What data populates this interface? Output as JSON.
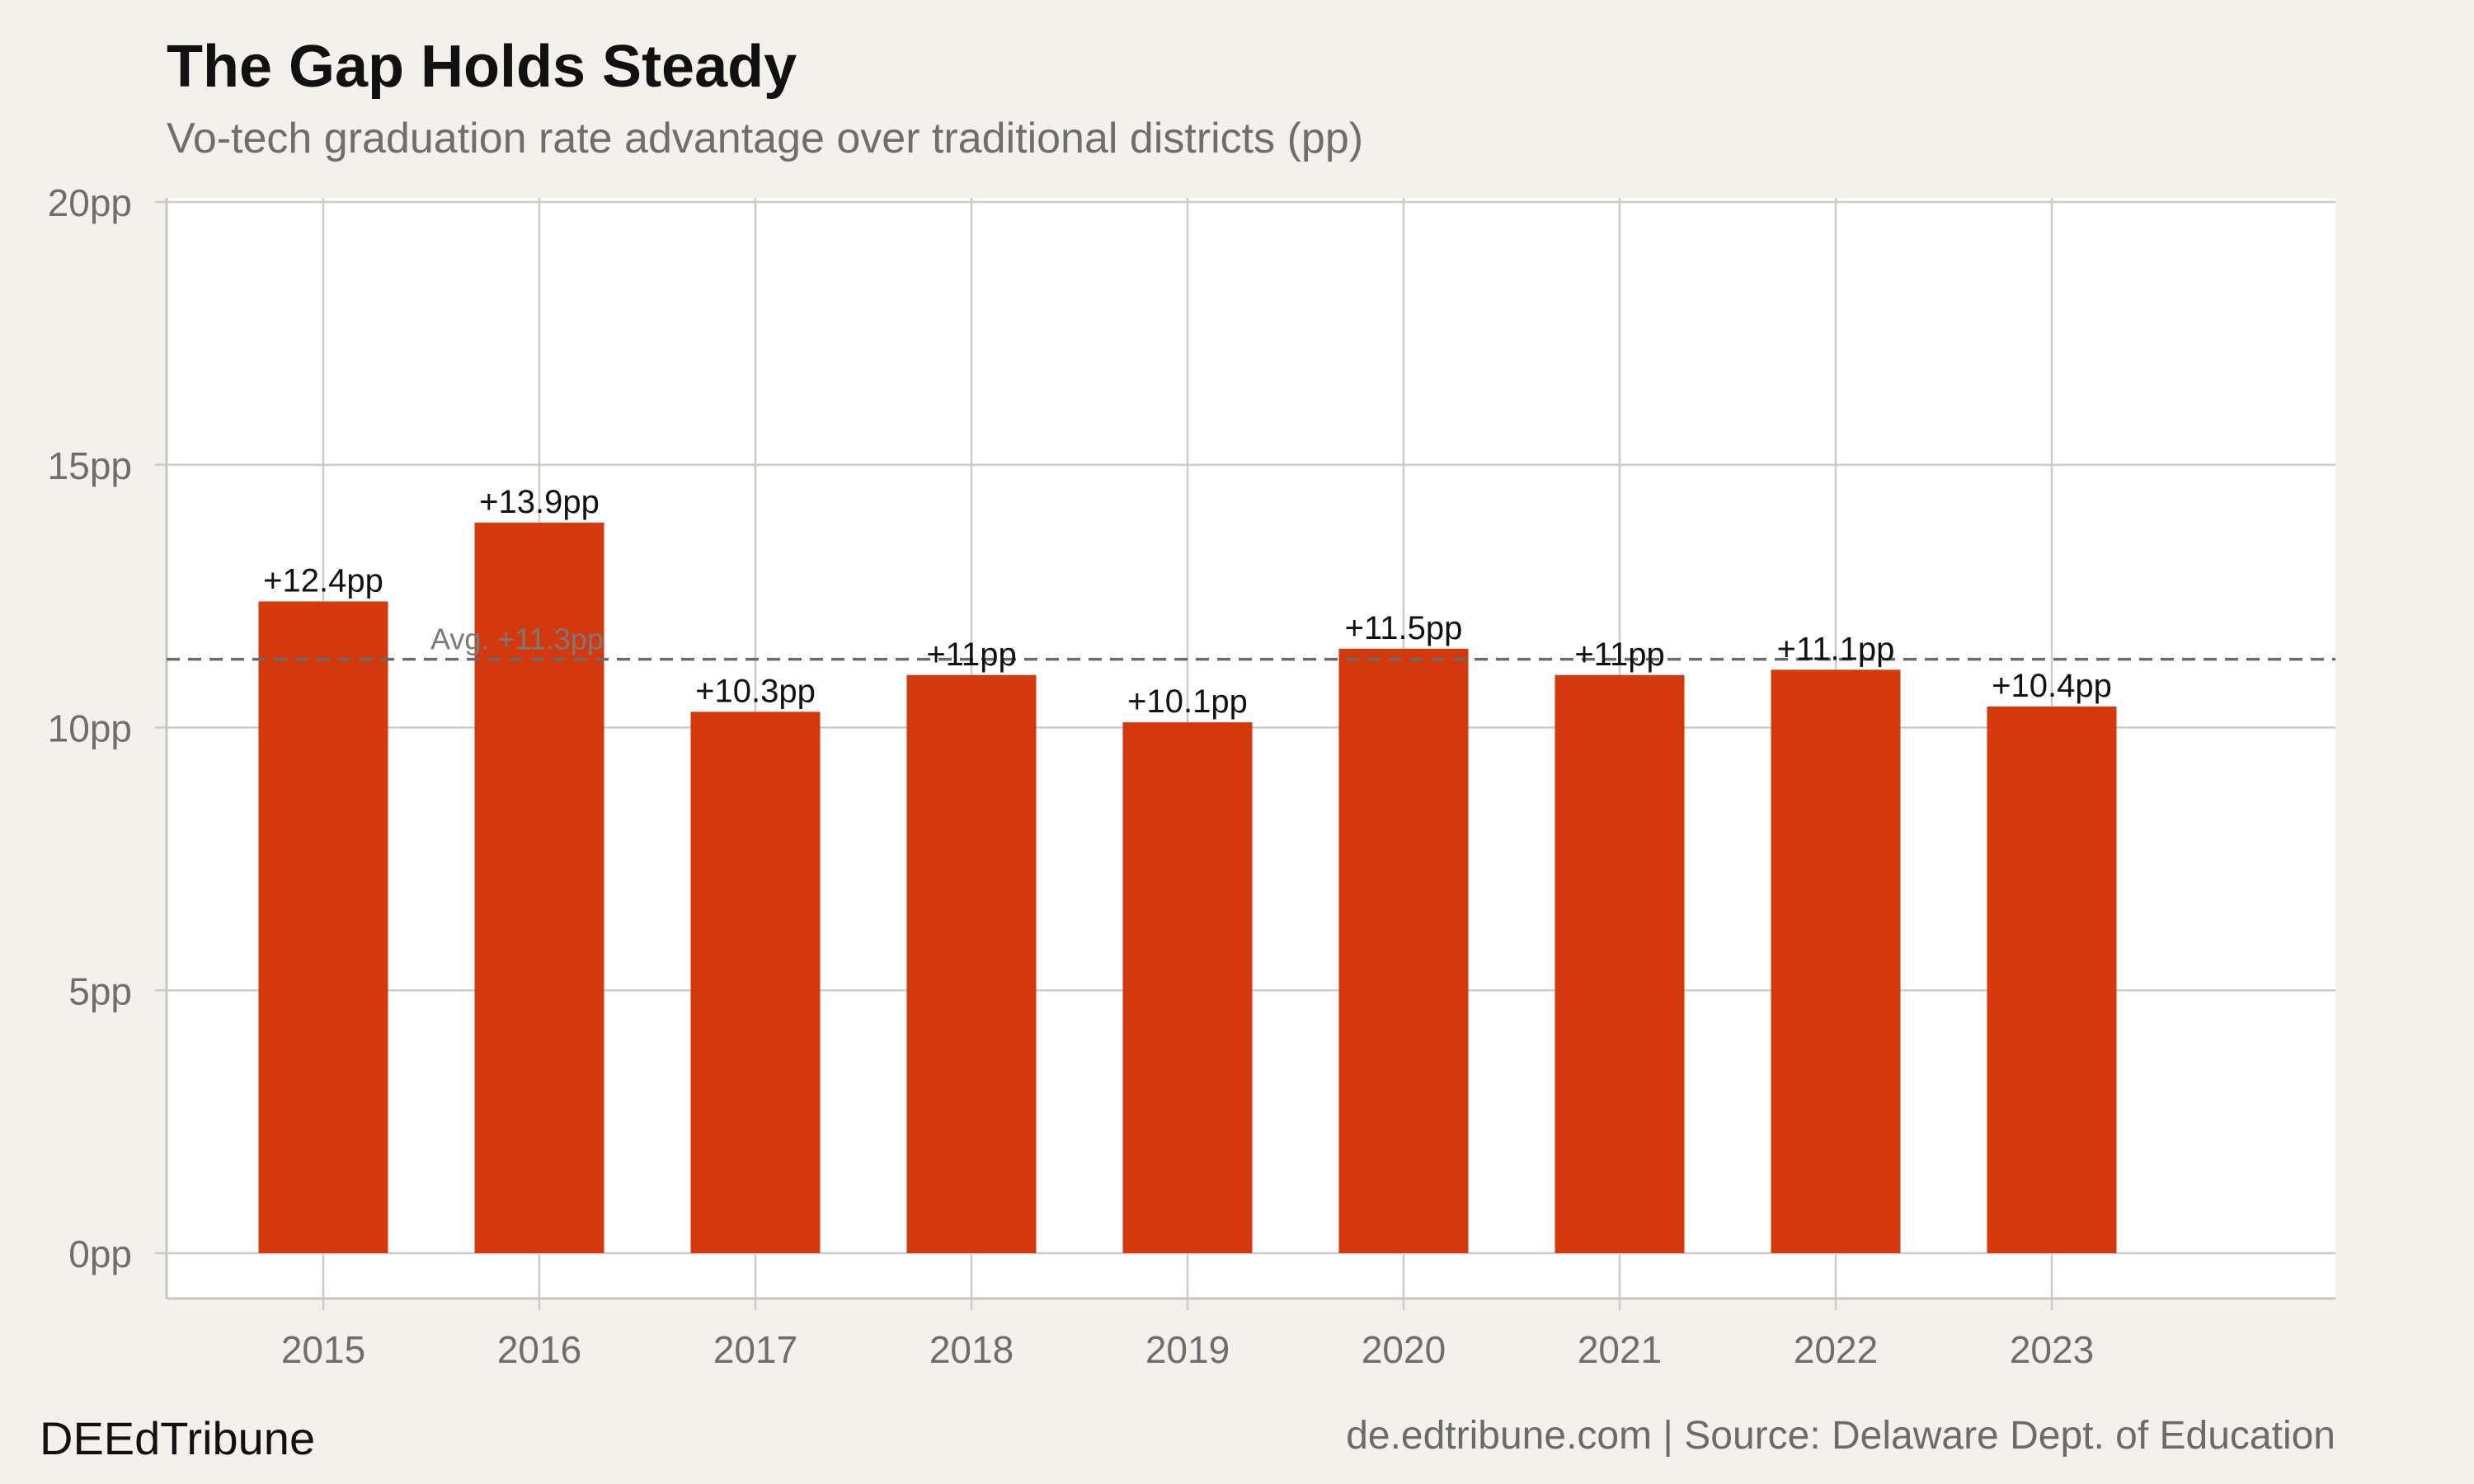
{
  "header": {
    "title": "The Gap Holds Steady",
    "subtitle": "Vo-tech graduation rate advantage over traditional districts (pp)"
  },
  "footer": {
    "brand": "DEEdTribune",
    "credit": "de.edtribune.com | Source: Delaware Dept. of Education"
  },
  "colors": {
    "background": "#f4f1ec",
    "plot_background": "#ffffff",
    "bar": "#d4380d",
    "grid": "#cfccc6",
    "average_line": "#6a6a6a"
  },
  "chart_data": {
    "type": "bar",
    "title": "The Gap Holds Steady",
    "subtitle": "Vo-tech graduation rate advantage over traditional districts (pp)",
    "xlabel": "",
    "ylabel": "",
    "categories": [
      "2015",
      "2016",
      "2017",
      "2018",
      "2019",
      "2020",
      "2021",
      "2022",
      "2023"
    ],
    "values": [
      12.4,
      13.9,
      10.3,
      11.0,
      10.1,
      11.5,
      11.0,
      11.1,
      10.4
    ],
    "data_labels": [
      "+12.4pp",
      "+13.9pp",
      "+10.3pp",
      "+11pp",
      "+10.1pp",
      "+11.5pp",
      "+11pp",
      "+11.1pp",
      "+10.4pp"
    ],
    "y_ticks": [
      0,
      5,
      10,
      15,
      20
    ],
    "y_tick_labels": [
      "0pp",
      "5pp",
      "10pp",
      "15pp",
      "20pp"
    ],
    "ylim": [
      0,
      20
    ],
    "grid": true,
    "legend": "none",
    "average": {
      "value": 11.3,
      "label": "Avg. +11.3pp",
      "style": "dashed"
    }
  }
}
